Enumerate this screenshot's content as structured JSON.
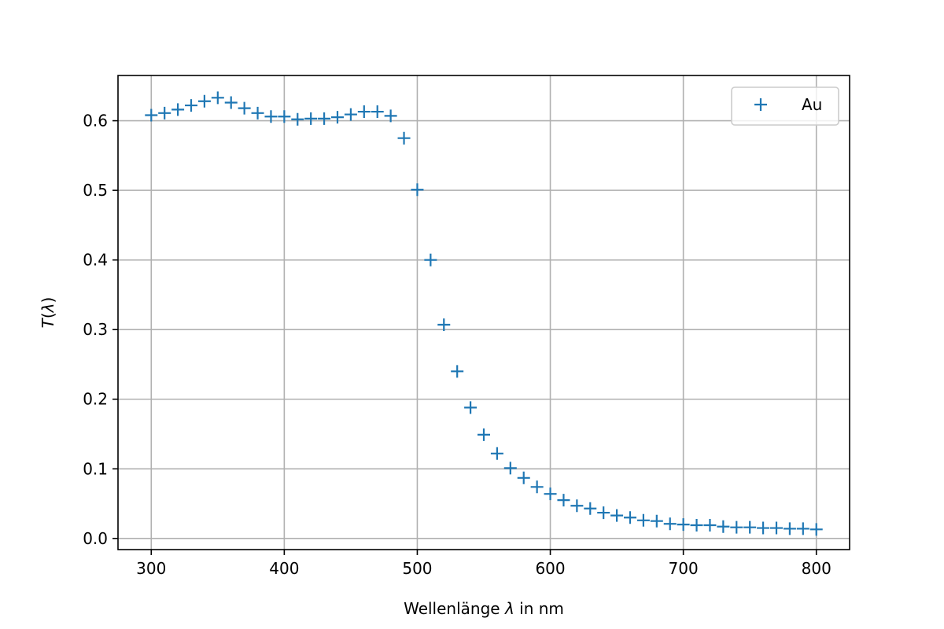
{
  "chart_data": {
    "type": "scatter",
    "title": "",
    "xlabel_prefix": "Wellenlänge ",
    "xlabel_symbol": "λ",
    "xlabel_suffix": " in nm",
    "ylabel_var": "T",
    "ylabel_arg": "λ",
    "xlim": [
      275,
      825
    ],
    "ylim": [
      -0.016,
      0.665
    ],
    "xticks": [
      300,
      400,
      500,
      600,
      700,
      800
    ],
    "xtick_labels": [
      "300",
      "400",
      "500",
      "600",
      "700",
      "800"
    ],
    "yticks": [
      0.0,
      0.1,
      0.2,
      0.3,
      0.4,
      0.5,
      0.6
    ],
    "ytick_labels": [
      "0.0",
      "0.1",
      "0.2",
      "0.3",
      "0.4",
      "0.5",
      "0.6"
    ],
    "grid": true,
    "legend_position": "top-right",
    "marker": "+",
    "series": [
      {
        "name": "Au",
        "color": "#1f77b4",
        "x": [
          300,
          310,
          320,
          330,
          340,
          350,
          360,
          370,
          380,
          390,
          400,
          410,
          420,
          430,
          440,
          450,
          460,
          470,
          480,
          490,
          500,
          510,
          520,
          530,
          540,
          550,
          560,
          570,
          580,
          590,
          600,
          610,
          620,
          630,
          640,
          650,
          660,
          670,
          680,
          690,
          700,
          710,
          720,
          730,
          740,
          750,
          760,
          770,
          780,
          790,
          800
        ],
        "y": [
          0.608,
          0.611,
          0.616,
          0.622,
          0.628,
          0.633,
          0.626,
          0.618,
          0.611,
          0.606,
          0.606,
          0.602,
          0.603,
          0.603,
          0.605,
          0.609,
          0.613,
          0.613,
          0.607,
          0.575,
          0.501,
          0.4,
          0.307,
          0.24,
          0.188,
          0.149,
          0.122,
          0.101,
          0.087,
          0.074,
          0.064,
          0.055,
          0.047,
          0.043,
          0.037,
          0.033,
          0.03,
          0.026,
          0.025,
          0.021,
          0.02,
          0.019,
          0.019,
          0.017,
          0.016,
          0.016,
          0.015,
          0.015,
          0.014,
          0.014,
          0.013
        ]
      }
    ]
  }
}
